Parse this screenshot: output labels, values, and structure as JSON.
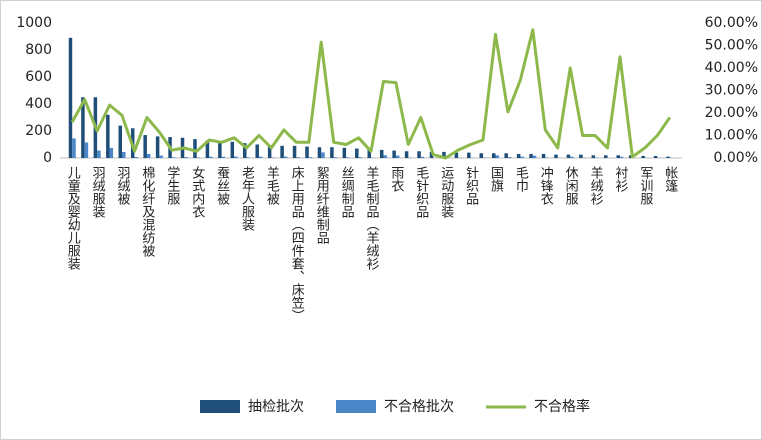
{
  "chart_data": {
    "type": "bar",
    "categories": [
      "儿童及婴幼儿服装",
      null,
      "羽绒服装",
      null,
      "羽绒被",
      null,
      "棉化纤及混纺被",
      null,
      "学生服",
      null,
      "女式内衣",
      null,
      "蚕丝被",
      null,
      "老年人服装",
      null,
      "羊毛被",
      null,
      "床上用品（四件套、床笠）",
      null,
      "絮用纤维制品",
      null,
      "丝绸制品",
      null,
      "羊毛制品（羊绒衫",
      null,
      "雨衣",
      null,
      "毛针织品",
      null,
      "运动服装",
      null,
      "针织品",
      null,
      "国旗",
      null,
      "毛巾",
      null,
      "冲锋衣",
      null,
      "休闲服",
      null,
      "羊绒衫",
      null,
      "衬衫",
      null,
      "军训服",
      null,
      "帐篷"
    ],
    "series": [
      {
        "name": "抽检批次",
        "color": "#1f4e79",
        "values": [
          890,
          450,
          450,
          320,
          240,
          220,
          170,
          160,
          155,
          150,
          140,
          130,
          125,
          120,
          110,
          100,
          95,
          90,
          90,
          85,
          80,
          80,
          75,
          70,
          65,
          60,
          55,
          50,
          50,
          45,
          45,
          40,
          40,
          35,
          35,
          35,
          30,
          30,
          30,
          25,
          25,
          25,
          20,
          20,
          20,
          20,
          15,
          15,
          10
        ]
      },
      {
        "name": "不合格批次",
        "color": "#4a86c8",
        "values": [
          145,
          115,
          55,
          75,
          45,
          7,
          30,
          18,
          5,
          7,
          4,
          10,
          9,
          11,
          5,
          10,
          4,
          11,
          6,
          6,
          41,
          6,
          5,
          6,
          2,
          20,
          18,
          3,
          9,
          1,
          0,
          1,
          2,
          3,
          19,
          7,
          10,
          17,
          4,
          1,
          10,
          2,
          2,
          1,
          9,
          0,
          1,
          2,
          2
        ]
      },
      {
        "name": "不合格率",
        "color": "#8db94b",
        "axis": "y2",
        "type": "line",
        "values": [
          16,
          26,
          12,
          23.5,
          19,
          3,
          18,
          11.5,
          3.5,
          4.5,
          3,
          8,
          7,
          9,
          4.5,
          10,
          4.5,
          12.5,
          7,
          7,
          51.5,
          7,
          6,
          9,
          3,
          34,
          33.5,
          6,
          18,
          1.5,
          0,
          3.5,
          6,
          8,
          55,
          20.5,
          34.7,
          57,
          12.5,
          4.5,
          40,
          10,
          10,
          4.5,
          45,
          0.5,
          4.5,
          10,
          18
        ]
      }
    ],
    "ylim": [
      0,
      1000
    ],
    "yticks": [
      0,
      200,
      400,
      600,
      800,
      1000
    ],
    "y2lim": [
      0,
      60
    ],
    "y2ticks": [
      {
        "value": 0,
        "label": "0.00%"
      },
      {
        "value": 10,
        "label": "10.00%"
      },
      {
        "value": 20,
        "label": "20.00%"
      },
      {
        "value": 30,
        "label": "30.00%"
      },
      {
        "value": 40,
        "label": "40.00%"
      },
      {
        "value": 50,
        "label": "50.00%"
      },
      {
        "value": 60,
        "label": "60.00%"
      }
    ],
    "legend": "bottom"
  }
}
